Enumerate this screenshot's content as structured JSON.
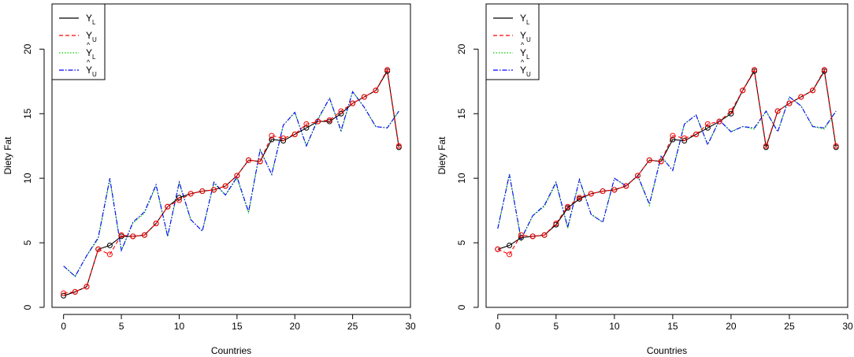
{
  "chart_data": [
    {
      "type": "line",
      "title": "",
      "xlabel": "Countries",
      "ylabel": "Diety Fat",
      "xlim": [
        -1,
        30
      ],
      "ylim": [
        0,
        23.5
      ],
      "xticks": [
        "0",
        "5",
        "10",
        "15",
        "20",
        "25",
        "30"
      ],
      "yticks": [
        "0",
        "5",
        "10",
        "15",
        "20"
      ],
      "legend": {
        "position": "top-left",
        "entries": [
          {
            "base": "Y",
            "sub": "L",
            "hat": false,
            "color": "#000000",
            "dash": ""
          },
          {
            "base": "Y",
            "sub": "U",
            "hat": false,
            "color": "#ff0000",
            "dash": "5,3"
          },
          {
            "base": "Y",
            "sub": "L",
            "hat": true,
            "color": "#00cd00",
            "dash": "1.5,2"
          },
          {
            "base": "Y",
            "sub": "U",
            "hat": true,
            "color": "#0000ff",
            "dash": "6,2,1.5,2"
          }
        ]
      },
      "x": [
        0,
        1,
        2,
        3,
        4,
        5,
        6,
        7,
        8,
        9,
        10,
        11,
        12,
        13,
        14,
        15,
        16,
        17,
        18,
        19,
        20,
        21,
        22,
        23,
        24,
        25,
        26,
        27,
        28,
        29
      ],
      "series": [
        {
          "name": "Y_L",
          "color": "#000000",
          "marker": true,
          "values": [
            0.9,
            1.2,
            1.6,
            4.5,
            4.8,
            5.5,
            5.5,
            5.6,
            6.5,
            7.8,
            8.5,
            8.8,
            9.0,
            9.1,
            9.4,
            10.2,
            11.4,
            11.3,
            13.0,
            12.9,
            13.4,
            13.9,
            14.4,
            14.4,
            15.0,
            15.8,
            16.3,
            16.8,
            18.3,
            12.4
          ]
        },
        {
          "name": "Y_U",
          "color": "#ff0000",
          "marker": true,
          "values": [
            1.1,
            1.2,
            1.6,
            4.5,
            4.1,
            5.6,
            5.5,
            5.6,
            6.5,
            7.8,
            8.3,
            8.8,
            9.0,
            9.1,
            9.4,
            10.2,
            11.4,
            11.3,
            13.3,
            13.1,
            13.4,
            14.2,
            14.4,
            14.5,
            15.2,
            15.8,
            16.3,
            16.8,
            18.4,
            12.5
          ]
        },
        {
          "name": "Ŷ_L",
          "color": "#00cd00",
          "marker": false,
          "values": [
            3.2,
            2.4,
            4.0,
            5.3,
            9.9,
            4.4,
            6.5,
            7.3,
            9.4,
            5.5,
            9.6,
            6.8,
            5.9,
            9.6,
            8.7,
            10.0,
            7.3,
            12.2,
            10.3,
            14.1,
            15.1,
            12.5,
            14.5,
            16.2,
            13.6,
            16.7,
            15.5,
            14.0,
            13.9,
            15.2
          ]
        },
        {
          "name": "Ŷ_U",
          "color": "#0000ff",
          "marker": false,
          "values": [
            3.2,
            2.4,
            4.0,
            5.4,
            10.0,
            4.4,
            6.6,
            7.4,
            9.5,
            5.5,
            9.7,
            6.8,
            5.9,
            9.7,
            8.7,
            10.1,
            7.4,
            12.2,
            10.3,
            14.1,
            15.1,
            12.5,
            14.6,
            16.2,
            13.7,
            16.7,
            15.5,
            14.0,
            13.9,
            15.2
          ]
        }
      ]
    },
    {
      "type": "line",
      "title": "",
      "xlabel": "Countries",
      "ylabel": "Diety Fat",
      "xlim": [
        -1,
        30
      ],
      "ylim": [
        0,
        23.5
      ],
      "xticks": [
        "0",
        "5",
        "10",
        "15",
        "20",
        "25",
        "30"
      ],
      "yticks": [
        "0",
        "5",
        "10",
        "15",
        "20"
      ],
      "legend": {
        "position": "top-left",
        "entries": [
          {
            "base": "Y",
            "sub": "L",
            "hat": false,
            "color": "#000000",
            "dash": ""
          },
          {
            "base": "Y",
            "sub": "U",
            "hat": false,
            "color": "#ff0000",
            "dash": "5,3"
          },
          {
            "base": "Y",
            "sub": "L",
            "hat": true,
            "color": "#00cd00",
            "dash": "1.5,2"
          },
          {
            "base": "Y",
            "sub": "U",
            "hat": true,
            "color": "#0000ff",
            "dash": "6,2,1.5,2"
          }
        ]
      },
      "x": [
        0,
        1,
        2,
        3,
        4,
        5,
        6,
        7,
        8,
        9,
        10,
        11,
        12,
        13,
        14,
        15,
        16,
        17,
        18,
        19,
        20,
        21,
        22,
        23,
        24,
        25,
        26,
        27,
        28,
        29
      ],
      "series": [
        {
          "name": "Y_L",
          "color": "#000000",
          "marker": true,
          "values": [
            4.5,
            4.8,
            5.4,
            5.5,
            5.6,
            6.4,
            7.7,
            8.4,
            8.8,
            9.0,
            9.1,
            9.4,
            10.2,
            11.4,
            11.3,
            13.0,
            12.9,
            13.4,
            13.9,
            14.4,
            15.0,
            16.8,
            18.3,
            12.4,
            15.2,
            15.8,
            16.3,
            16.8,
            18.3,
            12.4
          ]
        },
        {
          "name": "Y_U",
          "color": "#ff0000",
          "marker": true,
          "values": [
            4.5,
            4.1,
            5.6,
            5.5,
            5.6,
            6.5,
            7.8,
            8.5,
            8.8,
            9.0,
            9.1,
            9.4,
            10.2,
            11.4,
            11.3,
            13.3,
            13.1,
            13.4,
            14.2,
            14.4,
            15.2,
            16.8,
            18.4,
            12.5,
            15.2,
            15.8,
            16.3,
            16.8,
            18.4,
            12.5
          ]
        },
        {
          "name": "Ŷ_L",
          "color": "#00cd00",
          "marker": false,
          "values": [
            6.1,
            10.3,
            5.2,
            7.1,
            7.8,
            9.6,
            6.1,
            9.9,
            7.2,
            6.6,
            10.0,
            9.4,
            10.2,
            7.9,
            11.7,
            10.6,
            14.2,
            14.9,
            12.6,
            14.5,
            13.6,
            14.0,
            13.8,
            15.2,
            13.6,
            16.3,
            15.6,
            14.0,
            13.8,
            15.2
          ]
        },
        {
          "name": "Ŷ_U",
          "color": "#0000ff",
          "marker": false,
          "values": [
            6.1,
            10.3,
            5.3,
            7.1,
            7.9,
            9.7,
            6.2,
            9.9,
            7.2,
            6.6,
            10.0,
            9.4,
            10.2,
            8.0,
            11.7,
            10.6,
            14.2,
            14.9,
            12.6,
            14.5,
            13.6,
            14.0,
            13.9,
            15.2,
            13.6,
            16.3,
            15.6,
            14.0,
            13.9,
            15.2
          ]
        }
      ]
    }
  ]
}
